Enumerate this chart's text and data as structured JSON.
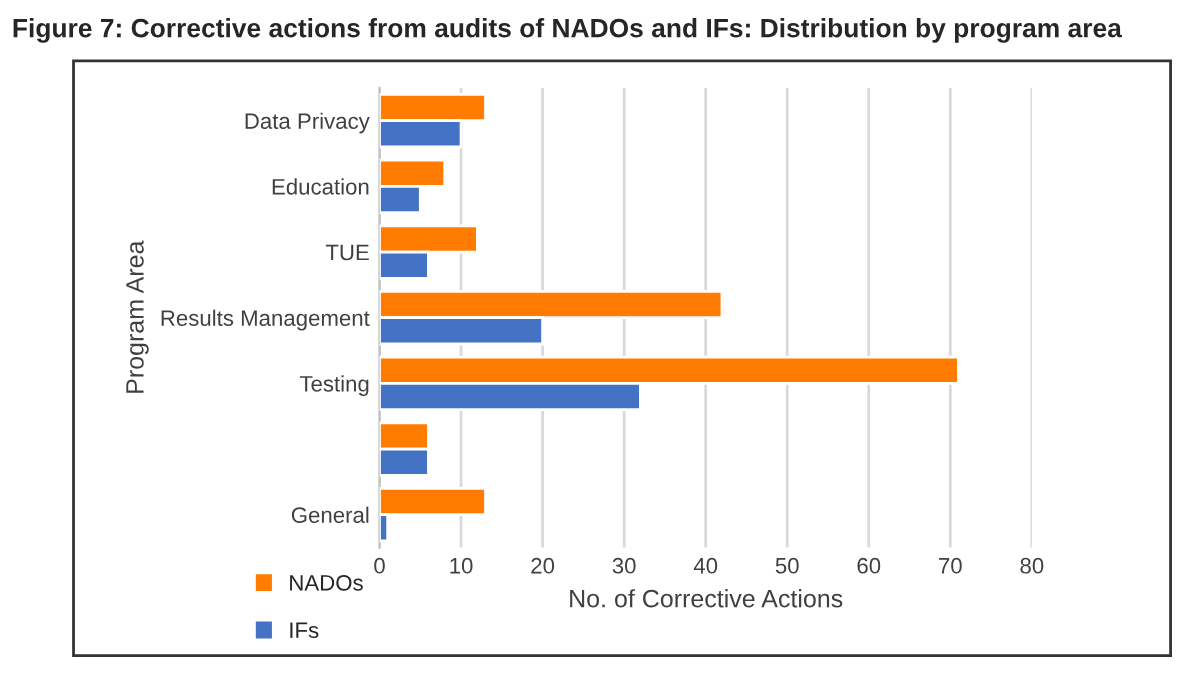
{
  "chart_data": {
    "type": "bar",
    "orientation": "horizontal",
    "title": "Figure 7: Corrective actions from audits of NADOs and IFs: Distribution by program area",
    "xlabel": "No. of Corrective Actions",
    "ylabel": "Program Area",
    "categories": [
      "Data Privacy",
      "Education",
      "TUE",
      "Results Management",
      "Testing",
      null,
      "General"
    ],
    "series": [
      {
        "name": "NADOs",
        "color": "#ff7c00",
        "values": [
          13,
          8,
          12,
          42,
          71,
          6,
          13
        ]
      },
      {
        "name": "IFs",
        "color": "#4472c4",
        "values": [
          10,
          5,
          6,
          20,
          32,
          6,
          1
        ]
      }
    ],
    "xlim": [
      0,
      80
    ],
    "xticks": [
      0,
      10,
      20,
      30,
      40,
      50,
      60,
      70,
      80
    ],
    "grid": "x",
    "legend": "bottom left"
  }
}
